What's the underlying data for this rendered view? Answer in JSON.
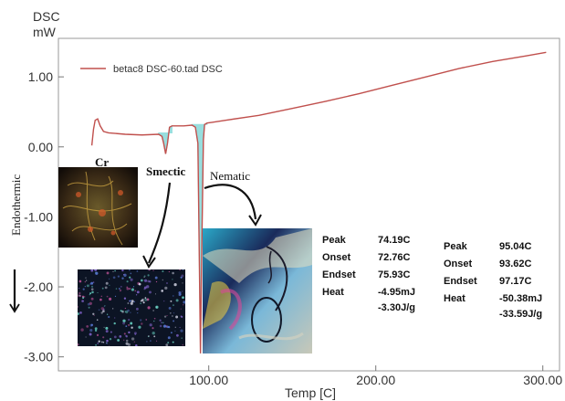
{
  "y_unit_top": "DSC",
  "y_unit_bottom": "mW",
  "ylabel_side": "Endothermic",
  "annotations": {
    "cr": "Cr",
    "smectic": "Smectic",
    "nematic": "Nematic"
  },
  "results": [
    {
      "peak_label": "Peak",
      "peak": "74.19C",
      "onset_label": "Onset",
      "onset": "72.76C",
      "endset_label": "Endset",
      "endset": "75.93C",
      "heat_label": "Heat",
      "heat": "-4.95mJ",
      "heat_per_g": "-3.30J/g"
    },
    {
      "peak_label": "Peak",
      "peak": "95.04C",
      "onset_label": "Onset",
      "onset": "93.62C",
      "endset_label": "Endset",
      "endset": "97.17C",
      "heat_label": "Heat",
      "heat": "-50.38mJ",
      "heat_per_g": "-33.59J/g"
    }
  ],
  "chart_data": {
    "type": "line",
    "xlabel": "Temp [C]",
    "ylabel": "DSC mW",
    "xlim": [
      10,
      310
    ],
    "ylim": [
      -3.2,
      1.55
    ],
    "x_ticks": [
      100,
      200,
      300
    ],
    "x_tick_labels": [
      "100.00",
      "200.00",
      "300.00"
    ],
    "y_ticks": [
      1,
      0,
      -1,
      -2,
      -3
    ],
    "y_tick_labels": [
      "1.00",
      "0.00",
      "-1.00",
      "-2.00",
      "-3.00"
    ],
    "grid": false,
    "legend_placement": "top-left",
    "colors": {
      "trace": "#c0504d",
      "peak_fill": "#44c4c4"
    },
    "series": [
      {
        "name": "betac8  DSC-60.tad  DSC",
        "x": [
          30,
          31,
          32,
          33.5,
          35,
          37,
          40,
          50,
          60,
          70,
          72,
          73,
          74.19,
          75.3,
          76.5,
          78,
          85,
          90,
          92,
          93.5,
          94.3,
          95.04,
          95.8,
          96.8,
          97.5,
          99,
          102,
          110,
          130,
          150,
          170,
          190,
          210,
          230,
          250,
          270,
          290,
          302
        ],
        "y": [
          0.02,
          0.25,
          0.38,
          0.4,
          0.3,
          0.22,
          0.2,
          0.18,
          0.17,
          0.18,
          0.15,
          0.05,
          -0.1,
          0.05,
          0.28,
          0.3,
          0.3,
          0.31,
          0.28,
          0.05,
          -1.5,
          -2.95,
          -1.5,
          0.1,
          0.32,
          0.34,
          0.35,
          0.38,
          0.45,
          0.55,
          0.65,
          0.76,
          0.88,
          1.0,
          1.12,
          1.22,
          1.3,
          1.35
        ]
      }
    ]
  }
}
